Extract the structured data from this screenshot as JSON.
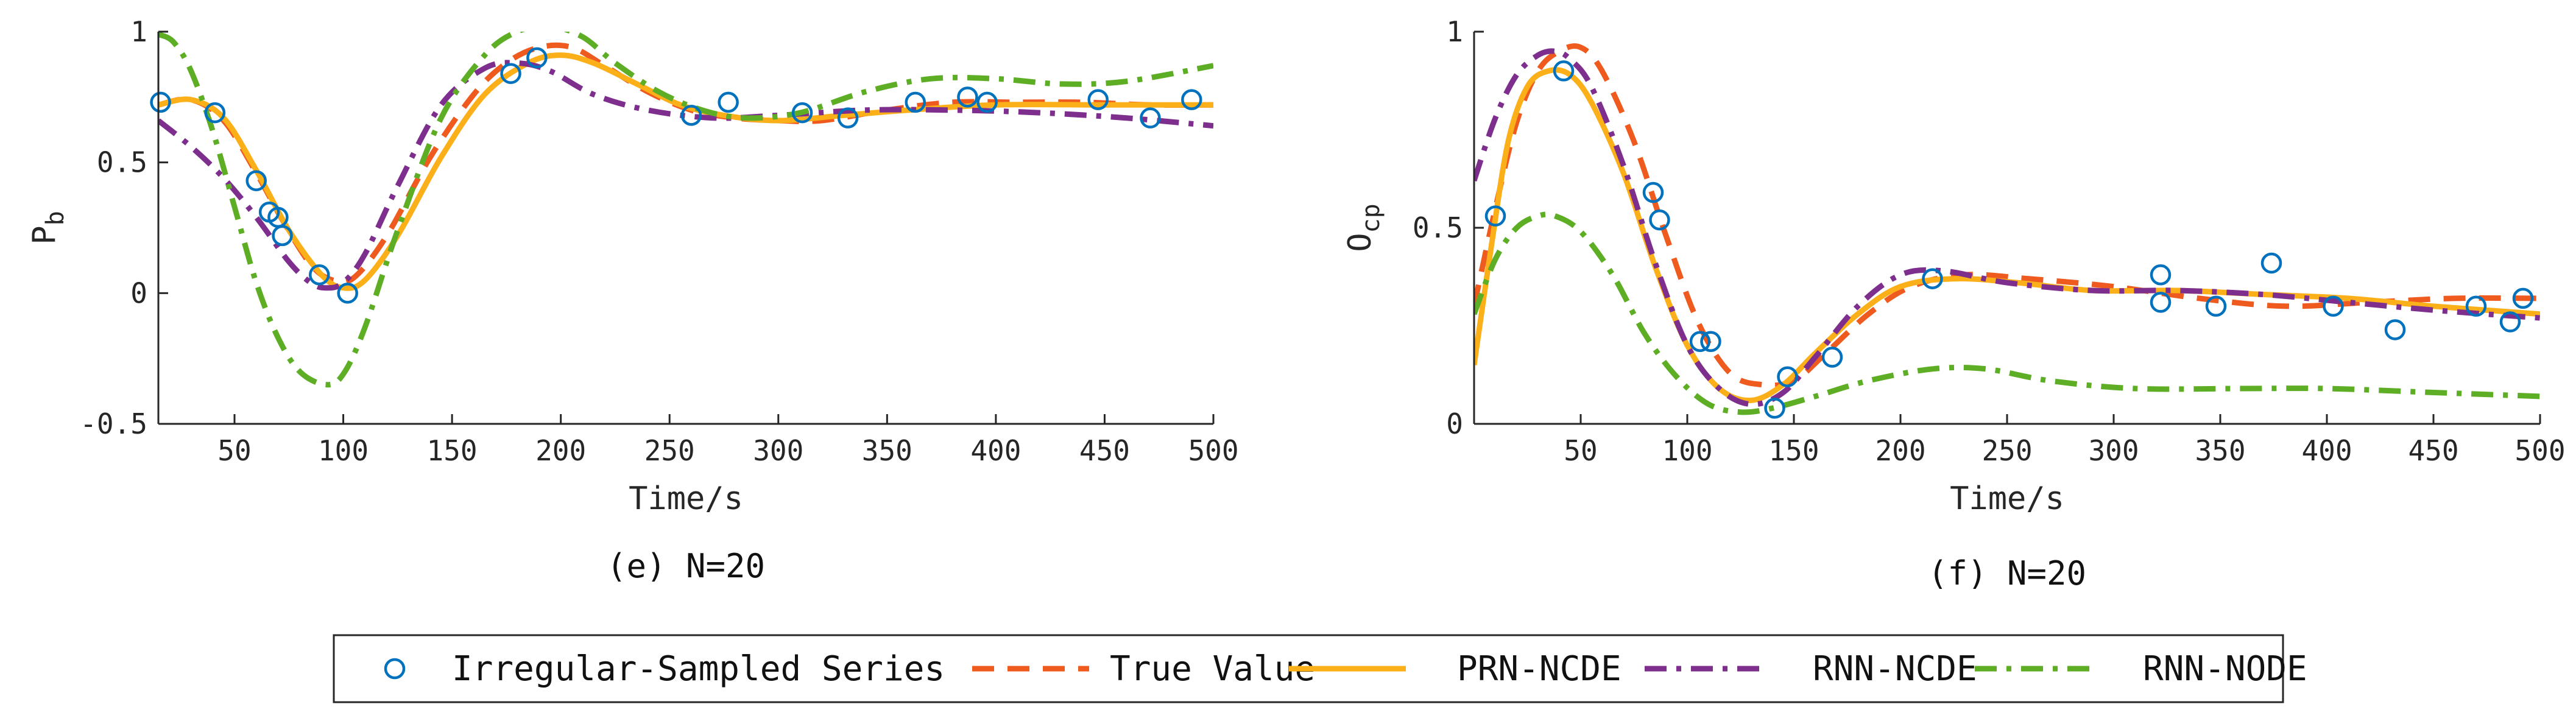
{
  "legend": {
    "items": [
      {
        "label": "Irregular-Sampled Series",
        "kind": "marker",
        "color": "#0072BD"
      },
      {
        "label": "True Value",
        "kind": "dash",
        "color": "#EF5A1F"
      },
      {
        "label": "PRN-NCDE",
        "kind": "solid",
        "color": "#FBAF18"
      },
      {
        "label": "RNN-NCDE",
        "kind": "dashdot",
        "color": "#7E2F8E"
      },
      {
        "label": "RNN-NODE",
        "kind": "dashdot",
        "color": "#5DAE25"
      }
    ]
  },
  "chart_data": [
    {
      "type": "line",
      "caption": "(e) N=20",
      "xlabel": "Time/s",
      "ylabel": "P",
      "ylabel_sub": "b",
      "xlim": [
        15,
        500
      ],
      "ylim": [
        -0.5,
        1
      ],
      "xticks": [
        50,
        100,
        150,
        200,
        250,
        300,
        350,
        400,
        450,
        500
      ],
      "xtick_labels": [
        "50",
        "100",
        "150",
        "200",
        "250",
        "300",
        "350",
        "400",
        "450",
        "500"
      ],
      "yticks": [
        -0.5,
        0,
        0.5,
        1
      ],
      "ytick_labels": [
        "-0.5",
        "0",
        "0.5",
        "1"
      ],
      "samples": {
        "x": [
          16,
          41,
          60,
          66,
          70,
          72,
          89,
          102,
          177,
          189,
          260,
          277,
          311,
          332,
          363,
          387,
          396,
          447,
          471,
          490
        ],
        "y": [
          0.73,
          0.69,
          0.43,
          0.31,
          0.29,
          0.22,
          0.07,
          0.0,
          0.84,
          0.9,
          0.68,
          0.73,
          0.69,
          0.67,
          0.73,
          0.75,
          0.73,
          0.74,
          0.67,
          0.74
        ]
      },
      "series": [
        {
          "name": "True Value",
          "style": "dash",
          "color": "#EF5A1F",
          "x": [
            15,
            30,
            45,
            60,
            72,
            85,
            95,
            105,
            120,
            140,
            160,
            175,
            190,
            205,
            220,
            240,
            260,
            280,
            300,
            320,
            350,
            380,
            410,
            440,
            470,
            500
          ],
          "y": [
            0.72,
            0.74,
            0.66,
            0.46,
            0.28,
            0.11,
            0.05,
            0.06,
            0.22,
            0.52,
            0.76,
            0.88,
            0.94,
            0.94,
            0.87,
            0.77,
            0.7,
            0.67,
            0.66,
            0.66,
            0.7,
            0.73,
            0.73,
            0.73,
            0.72,
            0.72
          ]
        },
        {
          "name": "PRN-NCDE",
          "style": "solid",
          "color": "#FBAF18",
          "x": [
            15,
            30,
            45,
            60,
            75,
            90,
            100,
            110,
            125,
            145,
            165,
            185,
            200,
            215,
            235,
            255,
            275,
            300,
            330,
            360,
            400,
            450,
            500
          ],
          "y": [
            0.72,
            0.74,
            0.67,
            0.47,
            0.24,
            0.07,
            0.02,
            0.05,
            0.22,
            0.52,
            0.76,
            0.88,
            0.91,
            0.88,
            0.8,
            0.72,
            0.68,
            0.66,
            0.68,
            0.7,
            0.72,
            0.72,
            0.72
          ]
        },
        {
          "name": "RNN-NCDE",
          "style": "dashdot",
          "color": "#7E2F8E",
          "x": [
            15,
            30,
            45,
            60,
            75,
            85,
            92,
            100,
            110,
            125,
            145,
            165,
            180,
            195,
            215,
            240,
            270,
            300,
            340,
            380,
            420,
            460,
            500
          ],
          "y": [
            0.66,
            0.56,
            0.44,
            0.29,
            0.12,
            0.04,
            0.02,
            0.04,
            0.15,
            0.41,
            0.72,
            0.86,
            0.88,
            0.85,
            0.76,
            0.7,
            0.67,
            0.68,
            0.7,
            0.7,
            0.69,
            0.67,
            0.64
          ]
        },
        {
          "name": "RNN-NODE",
          "style": "dashdot",
          "color": "#5DAE25",
          "x": [
            15,
            22,
            30,
            40,
            50,
            60,
            70,
            80,
            92,
            100,
            110,
            125,
            145,
            165,
            180,
            195,
            210,
            225,
            245,
            265,
            285,
            310,
            340,
            370,
            400,
            430,
            460,
            500
          ],
          "y": [
            0.99,
            0.96,
            0.85,
            0.62,
            0.33,
            0.04,
            -0.17,
            -0.3,
            -0.35,
            -0.31,
            -0.13,
            0.24,
            0.67,
            0.91,
            1.0,
            1.02,
            0.98,
            0.88,
            0.77,
            0.7,
            0.67,
            0.69,
            0.77,
            0.82,
            0.82,
            0.8,
            0.81,
            0.87
          ]
        }
      ]
    },
    {
      "type": "line",
      "caption": "(f) N=20",
      "xlabel": "Time/s",
      "ylabel": "O",
      "ylabel_sub": "cp",
      "xlim": [
        0,
        500
      ],
      "ylim": [
        0,
        1
      ],
      "xticks": [
        50,
        100,
        150,
        200,
        250,
        300,
        350,
        400,
        450,
        500
      ],
      "xtick_labels": [
        "50",
        "100",
        "150",
        "200",
        "250",
        "300",
        "350",
        "400",
        "450",
        "500"
      ],
      "yticks": [
        0,
        0.5,
        1
      ],
      "ytick_labels": [
        "0",
        "0.5",
        "1"
      ],
      "samples": {
        "x": [
          10,
          42,
          84,
          87,
          106,
          111,
          141,
          147,
          168,
          215,
          322,
          322,
          348,
          374,
          403,
          432,
          470,
          486,
          492
        ],
        "y": [
          0.53,
          0.9,
          0.59,
          0.52,
          0.21,
          0.21,
          0.04,
          0.12,
          0.17,
          0.37,
          0.38,
          0.31,
          0.3,
          0.41,
          0.3,
          0.24,
          0.3,
          0.26,
          0.32
        ]
      },
      "series": [
        {
          "name": "True Value",
          "style": "dash",
          "color": "#EF5A1F",
          "x": [
            0,
            10,
            20,
            30,
            40,
            50,
            60,
            75,
            90,
            105,
            120,
            135,
            150,
            165,
            185,
            205,
            230,
            260,
            300,
            340,
            380,
            420,
            460,
            500
          ],
          "y": [
            0.3,
            0.55,
            0.77,
            0.9,
            0.95,
            0.96,
            0.9,
            0.72,
            0.48,
            0.26,
            0.13,
            0.1,
            0.11,
            0.18,
            0.28,
            0.35,
            0.38,
            0.37,
            0.35,
            0.32,
            0.3,
            0.31,
            0.32,
            0.32
          ]
        },
        {
          "name": "PRN-NCDE",
          "style": "solid",
          "color": "#FBAF18",
          "x": [
            0,
            8,
            16,
            25,
            35,
            45,
            55,
            70,
            85,
            100,
            115,
            130,
            145,
            160,
            180,
            200,
            225,
            255,
            290,
            330,
            370,
            410,
            450,
            500
          ],
          "y": [
            0.15,
            0.45,
            0.72,
            0.86,
            0.9,
            0.89,
            0.82,
            0.64,
            0.4,
            0.2,
            0.09,
            0.06,
            0.1,
            0.18,
            0.28,
            0.35,
            0.37,
            0.36,
            0.34,
            0.34,
            0.33,
            0.32,
            0.3,
            0.28
          ]
        },
        {
          "name": "RNN-NCDE",
          "style": "dashdot",
          "color": "#7E2F8E",
          "x": [
            0,
            10,
            20,
            30,
            38,
            45,
            55,
            70,
            85,
            100,
            115,
            130,
            145,
            160,
            180,
            200,
            220,
            250,
            290,
            330,
            370,
            410,
            450,
            500
          ],
          "y": [
            0.62,
            0.78,
            0.89,
            0.94,
            0.95,
            0.93,
            0.86,
            0.66,
            0.41,
            0.2,
            0.09,
            0.05,
            0.08,
            0.17,
            0.3,
            0.38,
            0.39,
            0.36,
            0.34,
            0.34,
            0.33,
            0.31,
            0.29,
            0.27
          ]
        },
        {
          "name": "RNN-NODE",
          "style": "dashdot",
          "color": "#5DAE25",
          "x": [
            0,
            10,
            20,
            30,
            38,
            50,
            65,
            80,
            95,
            110,
            125,
            140,
            160,
            185,
            215,
            240,
            270,
            310,
            360,
            400,
            450,
            500
          ],
          "y": [
            0.28,
            0.42,
            0.5,
            0.53,
            0.53,
            0.49,
            0.38,
            0.23,
            0.12,
            0.05,
            0.03,
            0.04,
            0.07,
            0.11,
            0.14,
            0.14,
            0.11,
            0.09,
            0.09,
            0.09,
            0.08,
            0.07
          ]
        }
      ]
    }
  ]
}
